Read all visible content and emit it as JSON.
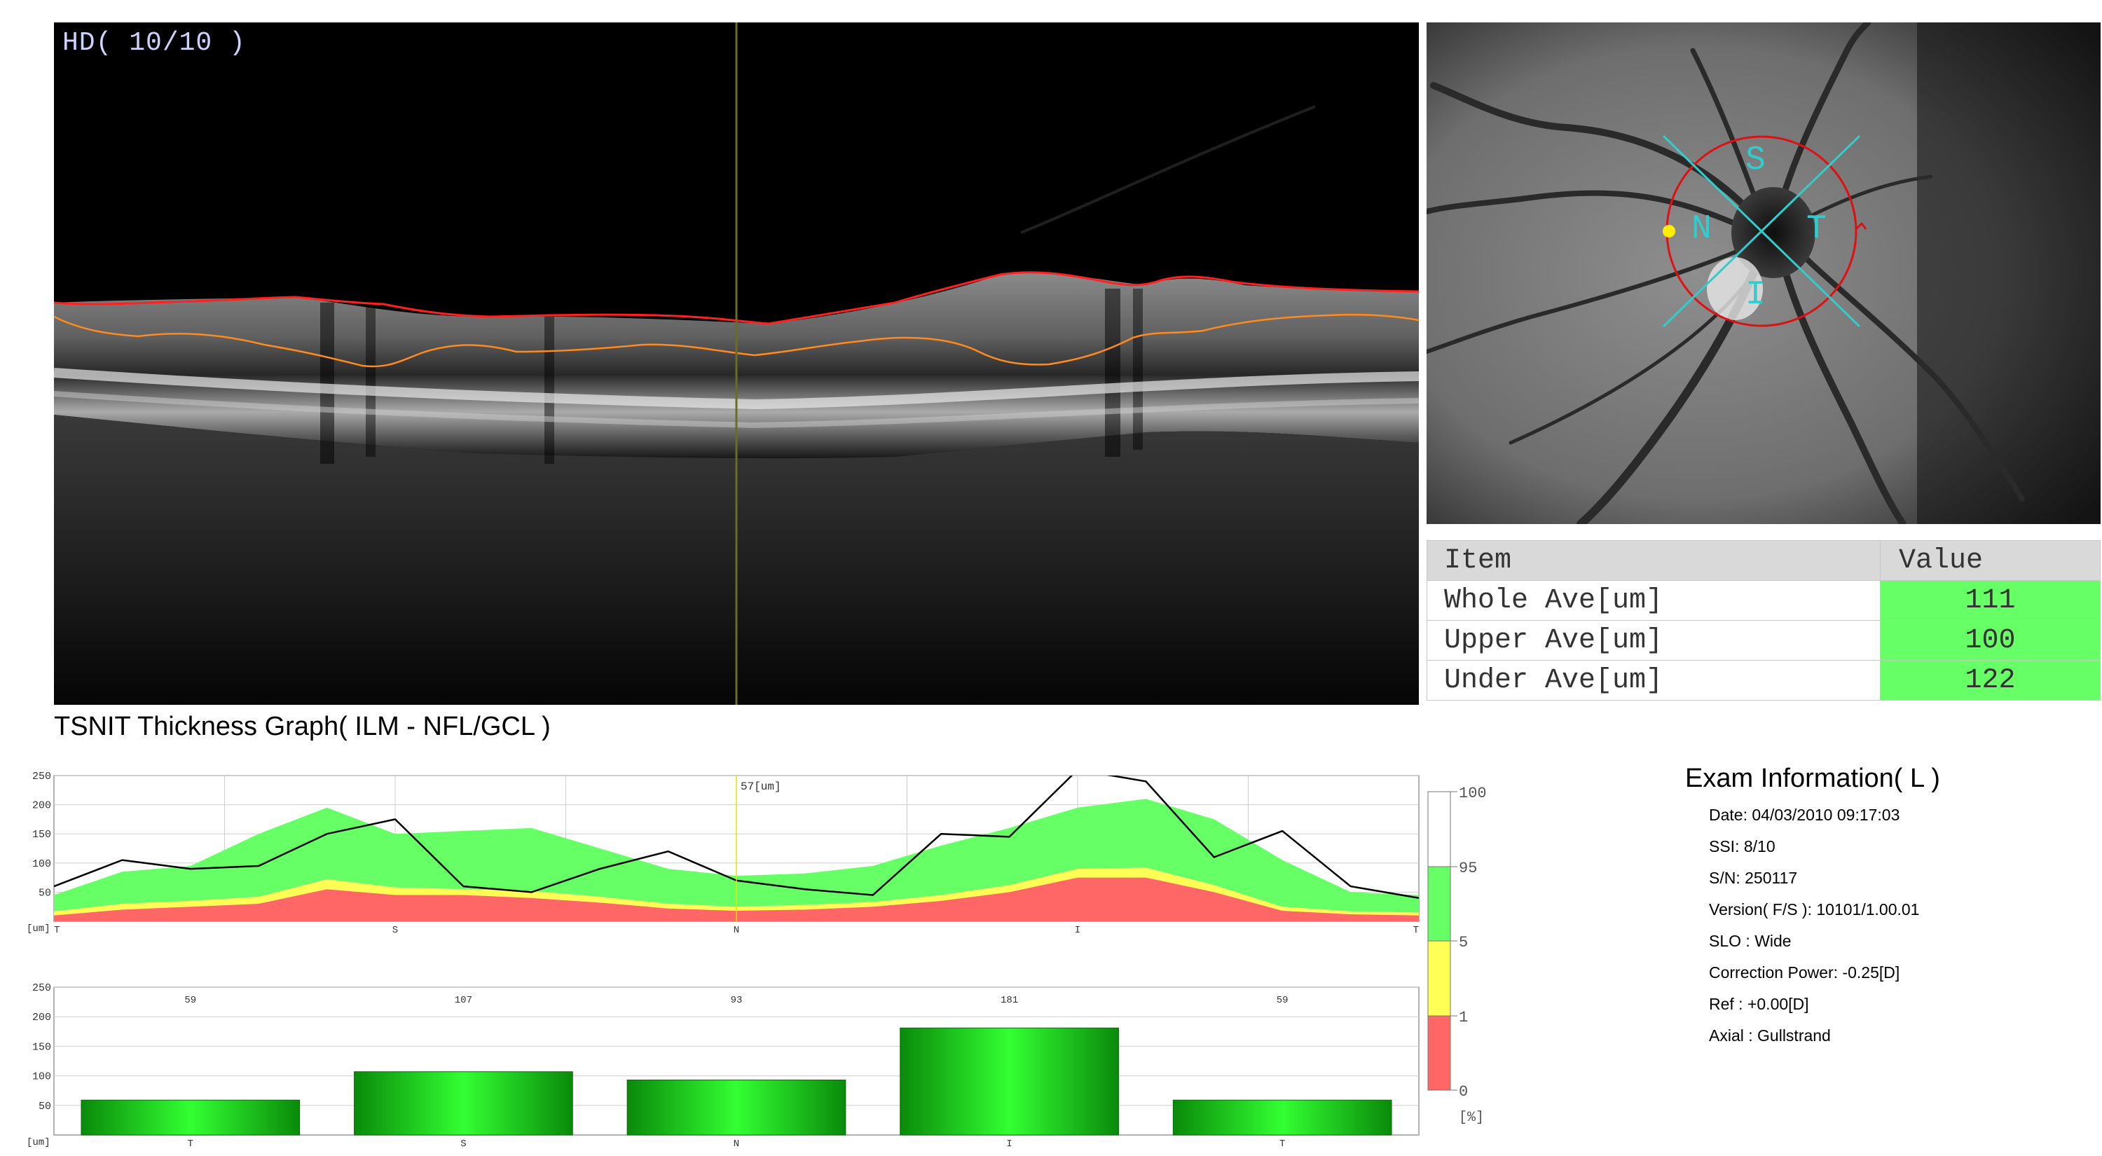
{
  "bscan": {
    "label": "HD( 10/10 )"
  },
  "fundus": {
    "sectors": [
      "S",
      "N",
      "T",
      "I"
    ]
  },
  "summary": {
    "headers": [
      "Item",
      "Value"
    ],
    "rows": [
      {
        "item": "Whole Ave[um]",
        "value": "111"
      },
      {
        "item": "Upper Ave[um]",
        "value": "100"
      },
      {
        "item": "Under Ave[um]",
        "value": "122"
      }
    ],
    "value_color": "#66ff66"
  },
  "tsnit": {
    "title": "TSNIT Thickness Graph( ILM - NFL/GCL )",
    "cursor_label": "57[um]",
    "unit": "[um]",
    "y_ticks": [
      "250",
      "200",
      "150",
      "100",
      "50"
    ],
    "x_ticks": [
      "T",
      "S",
      "N",
      "I",
      "T"
    ]
  },
  "percentile_legend": {
    "ticks": [
      "100",
      "95",
      "5",
      "1",
      "0"
    ],
    "unit": "[%]",
    "colors": {
      "white": "#ffffff",
      "green": "#66ff66",
      "yellow": "#ffff55",
      "red": "#ff6666"
    }
  },
  "exam": {
    "title": "Exam Information( L )",
    "fields": [
      "Date: 04/03/2010 09:17:03",
      "SSI:  8/10",
      "S/N: 250117",
      "Version( F/S ): 10101/1.00.01",
      "SLO : Wide",
      "Correction Power: -0.25[D]",
      "Ref : +0.00[D]",
      "Axial : Gullstrand"
    ]
  },
  "chart_data": [
    {
      "type": "area",
      "title": "TSNIT Thickness Graph( ILM - NFL/GCL )",
      "ylabel": "[um]",
      "ylim": [
        0,
        250
      ],
      "x_tick_labels": [
        "T",
        "S",
        "N",
        "I",
        "T"
      ],
      "x": [
        0,
        0.05,
        0.1,
        0.15,
        0.2,
        0.25,
        0.3,
        0.35,
        0.4,
        0.45,
        0.5,
        0.55,
        0.6,
        0.65,
        0.7,
        0.75,
        0.8,
        0.85,
        0.9,
        0.95,
        1.0
      ],
      "bands": {
        "p1": [
          10,
          20,
          25,
          30,
          55,
          45,
          45,
          40,
          32,
          22,
          18,
          20,
          25,
          35,
          50,
          75,
          75,
          50,
          18,
          12,
          10
        ],
        "p5": [
          17,
          30,
          35,
          42,
          72,
          58,
          55,
          52,
          42,
          30,
          25,
          28,
          33,
          45,
          62,
          90,
          92,
          62,
          25,
          17,
          15
        ],
        "p95": [
          45,
          85,
          95,
          150,
          195,
          150,
          155,
          160,
          125,
          90,
          78,
          82,
          95,
          130,
          160,
          195,
          210,
          175,
          105,
          50,
          45
        ],
        "p100": [
          55,
          95,
          105,
          160,
          212,
          165,
          165,
          172,
          135,
          98,
          85,
          90,
          105,
          145,
          175,
          210,
          225,
          190,
          115,
          62,
          55
        ]
      },
      "series": [
        {
          "values": [
            60,
            105,
            90,
            95,
            150,
            175,
            60,
            50,
            90,
            120,
            70,
            55,
            45,
            150,
            145,
            260,
            240,
            110,
            155,
            60,
            40
          ]
        }
      ],
      "cursor_value": "57[um]"
    },
    {
      "type": "bar",
      "ylabel": "[um]",
      "ylim": [
        0,
        250
      ],
      "categories": [
        "T",
        "S",
        "N",
        "I",
        "T"
      ],
      "values": [
        59,
        107,
        93,
        181,
        59
      ]
    }
  ]
}
